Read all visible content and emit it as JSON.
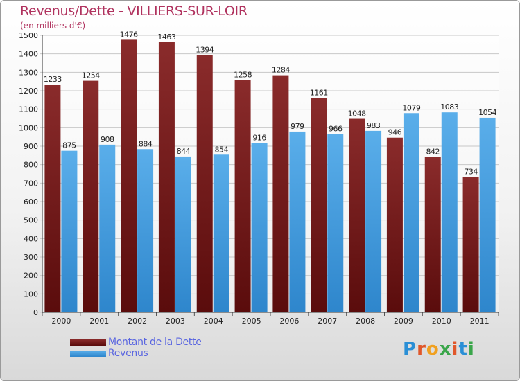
{
  "header": {
    "title": "Revenus/Dette - VILLIERS-SUR-LOIR",
    "subtitle": "(en milliers d'€)"
  },
  "colors": {
    "dette_light": "#8a2b2b",
    "dette_dark": "#5a0c0c",
    "revenus_light": "#5aaeea",
    "revenus_dark": "#2e86cc"
  },
  "chart_data": {
    "type": "bar",
    "categories": [
      "2000",
      "2001",
      "2002",
      "2003",
      "2004",
      "2005",
      "2006",
      "2007",
      "2008",
      "2009",
      "2010",
      "2011"
    ],
    "series": [
      {
        "name": "Montant de la Dette",
        "values": [
          1233,
          1254,
          1476,
          1463,
          1394,
          1258,
          1284,
          1161,
          1048,
          946,
          842,
          734
        ]
      },
      {
        "name": "Revenus",
        "values": [
          875,
          908,
          884,
          844,
          854,
          916,
          979,
          966,
          983,
          1079,
          1083,
          1054
        ]
      }
    ],
    "ylim": [
      0,
      1500
    ],
    "yticks": [
      0,
      100,
      200,
      300,
      400,
      500,
      600,
      700,
      800,
      900,
      1000,
      1100,
      1200,
      1300,
      1400,
      1500
    ],
    "grid": true,
    "legend": "bottom-left"
  },
  "legend": {
    "items": [
      {
        "label": "Montant de la Dette",
        "color": "#6b1212"
      },
      {
        "label": "Revenus",
        "color": "#4a9fe0"
      }
    ]
  },
  "logo": {
    "text": "Proxiti"
  }
}
